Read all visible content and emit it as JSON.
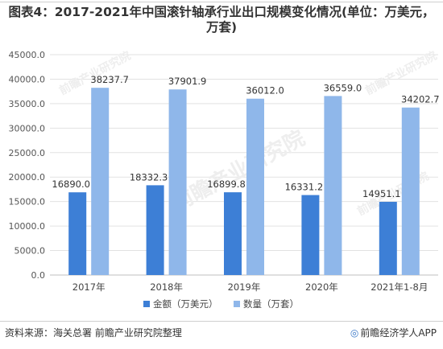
{
  "title": "图表4：2017-2021年中国滚针轴承行业出口规模变化情况(单位：万美元，万套)",
  "source": "资料来源：海关总署 前瞻产业研究院整理",
  "brand": "前瞻经济学人APP",
  "watermark": "前瞻产业研究院",
  "colors": {
    "amount": "#3d7fd6",
    "quantity": "#8fb7ea"
  },
  "chart_data": {
    "type": "bar",
    "categories": [
      "2017年",
      "2018年",
      "2019年",
      "2020年",
      "2021年1-8月"
    ],
    "series": [
      {
        "name": "金额（万美元）",
        "values": [
          16890.0,
          18332.3,
          16899.8,
          16331.2,
          14951.1
        ],
        "labels": [
          "16890.0",
          "18332.3",
          "16899.8",
          "16331.2",
          "14951.1"
        ]
      },
      {
        "name": "数量（万套）",
        "values": [
          38237.7,
          37901.9,
          36012.0,
          36559.0,
          34202.7
        ],
        "labels": [
          "38237.7",
          "37901.9",
          "36012.0",
          "36559.0",
          "34202.7"
        ]
      }
    ],
    "yticks": [
      "0.0",
      "5000.0",
      "10000.0",
      "15000.0",
      "20000.0",
      "25000.0",
      "30000.0",
      "35000.0",
      "40000.0",
      "45000.0"
    ],
    "ylim": [
      0,
      45000
    ],
    "grid": true,
    "legend": "bottom-center"
  }
}
